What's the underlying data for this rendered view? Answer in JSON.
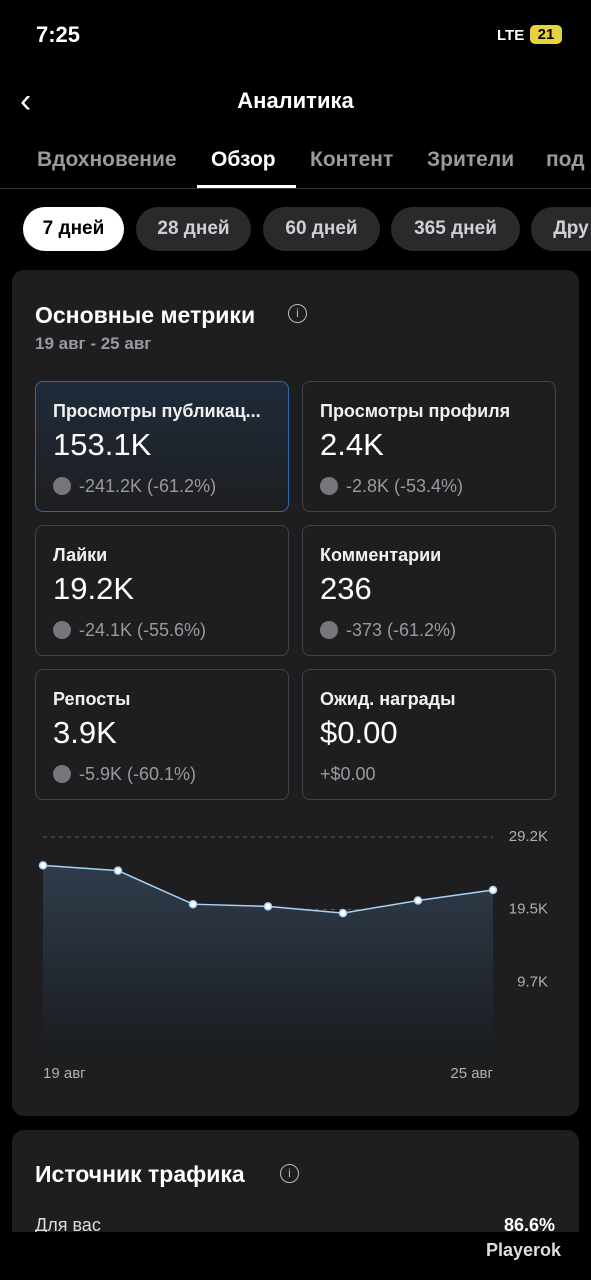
{
  "status_bar": {
    "time": "7:25",
    "network": "LTE",
    "battery": "21"
  },
  "header": {
    "title": "Аналитика"
  },
  "tabs": [
    "Вдохновение",
    "Обзор",
    "Контент",
    "Зрители",
    "под"
  ],
  "periods": [
    "7 дней",
    "28 дней",
    "60 дней",
    "365 дней",
    "Дру"
  ],
  "metrics": {
    "title": "Основные метрики",
    "date_range": "19 авг - 25 авг",
    "cards": [
      {
        "label": "Просмотры публикац...",
        "value": "153.1K",
        "change": "-241.2K (-61.2%)"
      },
      {
        "label": "Просмотры профиля",
        "value": "2.4K",
        "change": "-2.8K (-53.4%)"
      },
      {
        "label": "Лайки",
        "value": "19.2K",
        "change": "-24.1K (-55.6%)"
      },
      {
        "label": "Комментарии",
        "value": "236",
        "change": "-373 (-61.2%)"
      },
      {
        "label": "Репосты",
        "value": "3.9K",
        "change": "-5.9K (-60.1%)"
      },
      {
        "label": "Ожид. награды",
        "value": "$0.00",
        "change": "+$0.00"
      }
    ]
  },
  "chart_data": {
    "type": "line",
    "categories": [
      "19 авг",
      null,
      null,
      null,
      null,
      null,
      "25 авг"
    ],
    "values": [
      25400,
      24700,
      20200,
      19900,
      19000,
      20700,
      22100
    ],
    "color": "#a9d2f5",
    "ylim": [
      0,
      29200
    ],
    "yticks": [
      {
        "value": 29200,
        "label": "29.2K"
      },
      {
        "value": 19500,
        "label": "19.5K"
      },
      {
        "value": 9700,
        "label": "9.7K"
      }
    ],
    "grid": true
  },
  "traffic": {
    "title": "Источник трафика",
    "rows": [
      {
        "label": "Для вас",
        "value": "86.6%"
      }
    ]
  },
  "watermark": "Playerok"
}
